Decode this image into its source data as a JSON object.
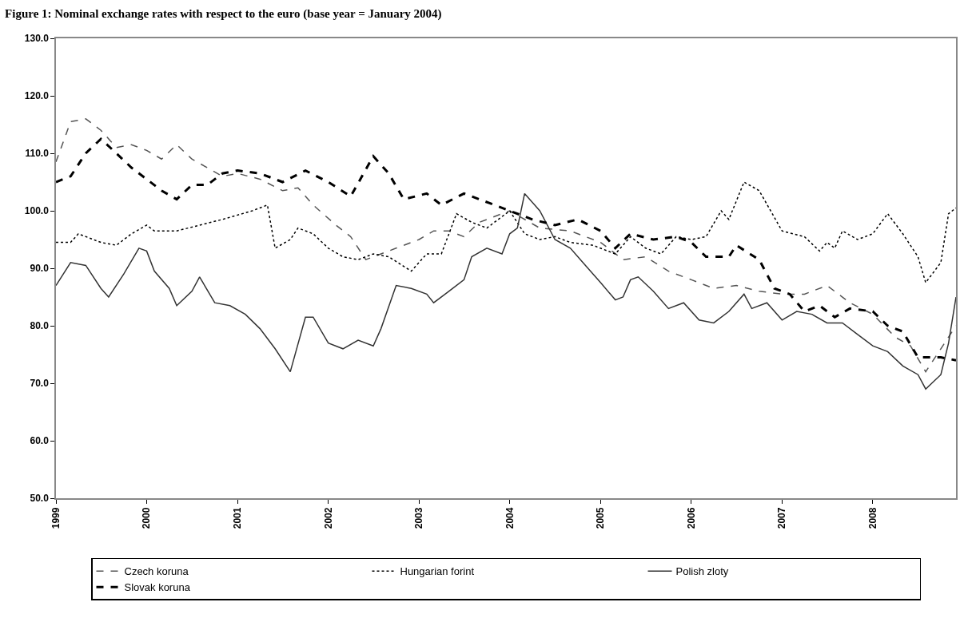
{
  "chart_data": {
    "type": "line",
    "title": "Figure 1: Nominal exchange rates with respect to the euro (base year = January 2004)",
    "xlim": [
      "1999-01",
      "2008-12"
    ],
    "xticks": [
      {
        "value": "1999-01",
        "label": "1999"
      },
      {
        "value": "2000-01",
        "label": "2000"
      },
      {
        "value": "2001-01",
        "label": "2001"
      },
      {
        "value": "2002-01",
        "label": "2002"
      },
      {
        "value": "2003-01",
        "label": "2003"
      },
      {
        "value": "2004-01",
        "label": "2004"
      },
      {
        "value": "2005-01",
        "label": "2005"
      },
      {
        "value": "2006-01",
        "label": "2006"
      },
      {
        "value": "2007-01",
        "label": "2007"
      },
      {
        "value": "2008-01",
        "label": "2008"
      }
    ],
    "ylim": [
      50,
      130
    ],
    "yticks": [
      {
        "value": 50,
        "label": "50.0"
      },
      {
        "value": 60,
        "label": "60.0"
      },
      {
        "value": 70,
        "label": "70.0"
      },
      {
        "value": 80,
        "label": "80.0"
      },
      {
        "value": 90,
        "label": "90.0"
      },
      {
        "value": 100,
        "label": "100.0"
      },
      {
        "value": 110,
        "label": "110.0"
      },
      {
        "value": 120,
        "label": "120.0"
      },
      {
        "value": 130,
        "label": "130.0"
      }
    ],
    "grid": false,
    "legend": "bottom",
    "marker": "none",
    "series": [
      {
        "name": "Czech koruna",
        "color": "#555555",
        "line_style": "dashed",
        "x": [
          "1999-01",
          "1999-03",
          "1999-05",
          "1999-07",
          "1999-09",
          "1999-11",
          "2000-01",
          "2000-03",
          "2000-05",
          "2000-07",
          "2000-09",
          "2000-11",
          "2001-01",
          "2001-04",
          "2001-07",
          "2001-09",
          "2001-11",
          "2002-02",
          "2002-04",
          "2002-06",
          "2002-08",
          "2002-10",
          "2003-01",
          "2003-03",
          "2003-05",
          "2003-07",
          "2003-09",
          "2004-01",
          "2004-05",
          "2004-09",
          "2005-01",
          "2005-04",
          "2005-07",
          "2005-10",
          "2006-01",
          "2006-04",
          "2006-07",
          "2006-10",
          "2007-01",
          "2007-04",
          "2007-07",
          "2007-10",
          "2008-01",
          "2008-04",
          "2008-06",
          "2008-08",
          "2008-10",
          "2008-12"
        ],
        "values": [
          108.5,
          115.5,
          116,
          114,
          111,
          111.5,
          110.5,
          109,
          111.5,
          109,
          107.5,
          106,
          106.5,
          105.5,
          103.5,
          104,
          101,
          97.5,
          95.5,
          91.5,
          92.5,
          93.5,
          95,
          96.5,
          96.5,
          95.5,
          98,
          100,
          97,
          96.5,
          94.5,
          91.5,
          92,
          89.5,
          88,
          86.5,
          87,
          86,
          85.5,
          85.5,
          87,
          84,
          82,
          78,
          76.5,
          72,
          76,
          80
        ]
      },
      {
        "name": "Hungarian forint",
        "color": "#000000",
        "line_style": "dotted",
        "x": [
          "1999-01",
          "1999-03",
          "1999-04",
          "1999-07",
          "1999-09",
          "1999-11",
          "2000-01",
          "2000-02",
          "2000-05",
          "2000-08",
          "2000-11",
          "2001-03",
          "2001-05",
          "2001-06",
          "2001-08",
          "2001-09",
          "2001-11",
          "2002-01",
          "2002-03",
          "2002-05",
          "2002-07",
          "2002-09",
          "2002-12",
          "2003-02",
          "2003-04",
          "2003-06",
          "2003-08",
          "2003-10",
          "2004-01",
          "2004-03",
          "2004-05",
          "2004-07",
          "2004-09",
          "2004-12",
          "2005-03",
          "2005-05",
          "2005-07",
          "2005-09",
          "2005-11",
          "2006-01",
          "2006-03",
          "2006-05",
          "2006-06",
          "2006-08",
          "2006-10",
          "2007-01",
          "2007-04",
          "2007-06",
          "2007-07",
          "2007-08",
          "2007-09",
          "2007-11",
          "2008-01",
          "2008-03",
          "2008-05",
          "2008-07",
          "2008-08",
          "2008-10",
          "2008-11",
          "2008-12"
        ],
        "values": [
          94.5,
          94.5,
          96,
          94.5,
          94,
          96,
          97.5,
          96.5,
          96.5,
          97.5,
          98.5,
          100,
          101,
          93.5,
          95,
          97,
          96,
          93.5,
          92,
          91.5,
          92.5,
          92,
          89.5,
          92.5,
          92.5,
          99.5,
          98,
          97,
          100,
          96,
          95,
          95.5,
          94.5,
          94,
          92.5,
          95.5,
          93.5,
          92.5,
          95.5,
          95,
          95.5,
          100,
          98.5,
          105,
          103.5,
          96.5,
          95.5,
          93,
          94.5,
          93.5,
          96.5,
          95,
          96,
          99.5,
          96,
          92,
          87.5,
          91,
          99.5,
          100.5
        ]
      },
      {
        "name": "Polish zloty",
        "color": "#333333",
        "line_style": "solid",
        "x": [
          "1999-01",
          "1999-03",
          "1999-05",
          "1999-07",
          "1999-08",
          "1999-10",
          "1999-12",
          "2000-01",
          "2000-02",
          "2000-04",
          "2000-05",
          "2000-07",
          "2000-08",
          "2000-10",
          "2000-12",
          "2001-02",
          "2001-04",
          "2001-06",
          "2001-08",
          "2001-10",
          "2001-11",
          "2002-01",
          "2002-03",
          "2002-05",
          "2002-07",
          "2002-08",
          "2002-10",
          "2002-12",
          "2003-02",
          "2003-03",
          "2003-05",
          "2003-07",
          "2003-08",
          "2003-10",
          "2003-12",
          "2004-01",
          "2004-02",
          "2004-03",
          "2004-05",
          "2004-07",
          "2004-09",
          "2004-11",
          "2005-01",
          "2005-03",
          "2005-04",
          "2005-05",
          "2005-06",
          "2005-08",
          "2005-10",
          "2005-12",
          "2006-02",
          "2006-04",
          "2006-06",
          "2006-08",
          "2006-09",
          "2006-11",
          "2007-01",
          "2007-03",
          "2007-05",
          "2007-07",
          "2007-09",
          "2007-11",
          "2008-01",
          "2008-03",
          "2008-05",
          "2008-07",
          "2008-08",
          "2008-10",
          "2008-11",
          "2008-12"
        ],
        "values": [
          87,
          91,
          90.5,
          86.5,
          85,
          89,
          93.5,
          93,
          89.5,
          86.5,
          83.5,
          86,
          88.5,
          84,
          83.5,
          82,
          79.5,
          76,
          72,
          81.5,
          81.5,
          77,
          76,
          77.5,
          76.5,
          79.5,
          87,
          86.5,
          85.5,
          84,
          86,
          88,
          92,
          93.5,
          92.5,
          96,
          97,
          103,
          100,
          95,
          93.5,
          90.5,
          87.5,
          84.5,
          85,
          88,
          88.5,
          86,
          83,
          84,
          81,
          80.5,
          82.5,
          85.5,
          83,
          84,
          81,
          82.5,
          82,
          80.5,
          80.5,
          78.5,
          76.5,
          75.5,
          73,
          71.5,
          69,
          71.5,
          77,
          85
        ]
      },
      {
        "name": "Slovak koruna",
        "color": "#000000",
        "line_style": "dashed",
        "x": [
          "1999-01",
          "1999-03",
          "1999-05",
          "1999-07",
          "1999-09",
          "1999-11",
          "2000-01",
          "2000-03",
          "2000-05",
          "2000-07",
          "2000-09",
          "2000-11",
          "2001-01",
          "2001-04",
          "2001-07",
          "2001-10",
          "2002-01",
          "2002-04",
          "2002-07",
          "2002-09",
          "2002-11",
          "2003-02",
          "2003-04",
          "2003-07",
          "2003-09",
          "2004-01",
          "2004-04",
          "2004-07",
          "2004-10",
          "2005-01",
          "2005-03",
          "2005-05",
          "2005-08",
          "2005-11",
          "2006-01",
          "2006-03",
          "2006-06",
          "2006-07",
          "2006-10",
          "2006-12",
          "2007-02",
          "2007-04",
          "2007-06",
          "2007-08",
          "2007-10",
          "2008-01",
          "2008-03",
          "2008-05",
          "2008-07",
          "2008-10",
          "2008-12"
        ],
        "values": [
          105,
          106,
          110,
          112.5,
          110,
          107.5,
          105.5,
          103.5,
          102,
          104.5,
          104.5,
          106.5,
          107,
          106.5,
          105,
          107,
          105,
          102.5,
          109.5,
          106.5,
          102,
          103,
          101,
          103,
          102,
          100,
          98.5,
          97.5,
          98.5,
          96.5,
          93.5,
          96,
          95,
          95.5,
          94.5,
          92,
          92,
          94,
          91.5,
          86.5,
          85.5,
          82.5,
          83.5,
          81.5,
          83,
          82.5,
          80,
          79,
          74.5,
          74.5,
          74
        ]
      }
    ]
  }
}
